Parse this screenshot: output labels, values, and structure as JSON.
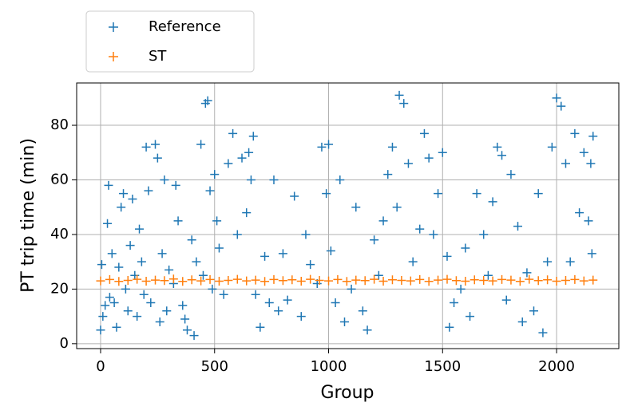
{
  "chart_data": {
    "type": "scatter",
    "xlabel": "Group",
    "ylabel": "PT trip time (min)",
    "xlim": [
      -105,
      2273
    ],
    "ylim": [
      -1.8,
      95.5
    ],
    "xticks": [
      0,
      500,
      1000,
      1500,
      2000
    ],
    "yticks": [
      0,
      20,
      40,
      60,
      80
    ],
    "grid": true,
    "legend": "upper left outside",
    "series": [
      {
        "name": "Reference",
        "color": "#1f77b4",
        "x": [
          0,
          5,
          10,
          20,
          30,
          35,
          40,
          50,
          60,
          70,
          80,
          90,
          100,
          110,
          120,
          130,
          140,
          150,
          160,
          170,
          180,
          190,
          200,
          210,
          220,
          240,
          250,
          260,
          270,
          280,
          290,
          300,
          320,
          330,
          340,
          360,
          370,
          380,
          400,
          410,
          420,
          440,
          450,
          460,
          470,
          480,
          490,
          500,
          510,
          520,
          540,
          560,
          580,
          600,
          620,
          640,
          650,
          660,
          670,
          680,
          700,
          720,
          740,
          760,
          780,
          800,
          820,
          850,
          880,
          900,
          920,
          950,
          970,
          990,
          1000,
          1010,
          1030,
          1050,
          1070,
          1100,
          1120,
          1150,
          1170,
          1200,
          1220,
          1240,
          1260,
          1280,
          1300,
          1310,
          1330,
          1350,
          1370,
          1400,
          1420,
          1440,
          1460,
          1480,
          1500,
          1520,
          1530,
          1550,
          1580,
          1600,
          1620,
          1650,
          1680,
          1700,
          1720,
          1740,
          1760,
          1780,
          1800,
          1830,
          1850,
          1870,
          1900,
          1920,
          1940,
          1960,
          1980,
          2000,
          2020,
          2040,
          2060,
          2080,
          2100,
          2120,
          2140,
          2150,
          2160,
          2155
        ],
        "values": [
          5,
          29,
          10,
          14,
          44,
          58,
          17,
          33,
          15,
          6,
          28,
          50,
          55,
          20,
          12,
          36,
          53,
          25,
          10,
          42,
          30,
          18,
          72,
          56,
          15,
          73,
          68,
          8,
          33,
          60,
          12,
          27,
          22,
          58,
          45,
          14,
          9,
          5,
          38,
          3,
          30,
          73,
          25,
          88,
          89,
          56,
          20,
          62,
          45,
          35,
          18,
          66,
          77,
          40,
          68,
          48,
          70,
          60,
          76,
          18,
          6,
          32,
          15,
          60,
          12,
          33,
          16,
          54,
          10,
          40,
          29,
          22,
          72,
          55,
          73,
          34,
          15,
          60,
          8,
          20,
          50,
          12,
          5,
          38,
          25,
          45,
          62,
          72,
          50,
          91,
          88,
          66,
          30,
          42,
          77,
          68,
          40,
          55,
          70,
          32,
          6,
          15,
          20,
          35,
          10,
          55,
          40,
          25,
          52,
          72,
          69,
          16,
          62,
          43,
          8,
          26,
          12,
          55,
          4,
          30,
          72,
          90,
          87,
          66,
          30,
          77,
          48,
          70,
          45,
          66,
          76,
          33
        ]
      },
      {
        "name": "ST",
        "color": "#ff7f0e",
        "x": [
          0,
          40,
          80,
          120,
          160,
          200,
          240,
          280,
          320,
          360,
          400,
          440,
          480,
          520,
          560,
          600,
          640,
          680,
          720,
          760,
          800,
          840,
          880,
          920,
          960,
          1000,
          1040,
          1080,
          1120,
          1160,
          1200,
          1240,
          1280,
          1320,
          1360,
          1400,
          1440,
          1480,
          1520,
          1560,
          1600,
          1640,
          1680,
          1720,
          1760,
          1800,
          1840,
          1880,
          1920,
          1960,
          2000,
          2040,
          2080,
          2120,
          2160
        ],
        "values": [
          23,
          23.5,
          22.8,
          23.2,
          23.6,
          22.9,
          23.3,
          23.1,
          23.7,
          22.8,
          23.4,
          23,
          23.5,
          22.9,
          23.2,
          23.6,
          23,
          23.3,
          22.8,
          23.5,
          23.1,
          23.4,
          22.9,
          23.6,
          23.2,
          23,
          23.5,
          22.8,
          23.3,
          23.1,
          23.6,
          22.9,
          23.4,
          23.2,
          23,
          23.5,
          22.8,
          23.3,
          23.6,
          23.1,
          22.9,
          23.4,
          23.2,
          23,
          23.5,
          23.3,
          22.8,
          23.6,
          23.1,
          23.4,
          22.9,
          23.2,
          23.5,
          23,
          23.3
        ]
      }
    ]
  }
}
